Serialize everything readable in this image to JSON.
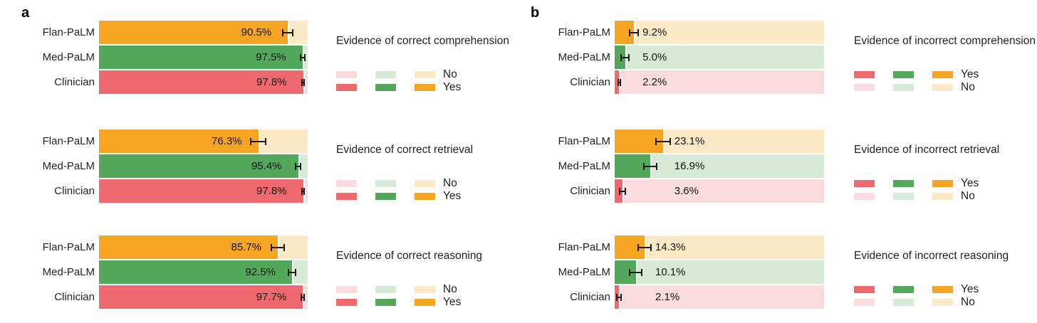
{
  "figure": {
    "panel_letters": {
      "a": "a",
      "b": "b"
    },
    "legend_labels": {
      "yes": "Yes",
      "no": "No"
    }
  },
  "colors": {
    "flan_palm": {
      "solid": "#F6A523",
      "light": "#FBE9C6"
    },
    "med_palm": {
      "solid": "#53A85C",
      "light": "#D7EAD7"
    },
    "clinician": {
      "solid": "#EE6A6F",
      "light": "#FADBDE"
    },
    "error_bar": "#1a1a1a",
    "text": "#231f20"
  },
  "swatch_order": [
    "clinician",
    "med_palm",
    "flan_palm"
  ],
  "series_keys": [
    "flan_palm",
    "med_palm",
    "clinician"
  ],
  "chart_data": [
    {
      "type": "bar",
      "orientation": "horizontal",
      "panel": "a",
      "title": "Evidence of correct comprehension",
      "categories": [
        "Flan-PaLM",
        "Med-PaLM",
        "Clinician"
      ],
      "values": [
        90.5,
        97.5,
        97.8
      ],
      "errors": [
        2.7,
        1.4,
        1.0
      ],
      "value_labels": [
        "90.5%",
        "97.5%",
        "97.8%"
      ],
      "xlim": [
        0,
        100
      ],
      "value_label_placement": "inside-end",
      "legend_position": "right",
      "legend_rows": [
        {
          "label": "No",
          "variant": "light"
        },
        {
          "label": "Yes",
          "variant": "solid"
        }
      ]
    },
    {
      "type": "bar",
      "orientation": "horizontal",
      "panel": "a",
      "title": "Evidence of correct retrieval",
      "categories": [
        "Flan-PaLM",
        "Med-PaLM",
        "Clinician"
      ],
      "values": [
        76.3,
        95.4,
        97.8
      ],
      "errors": [
        3.8,
        1.7,
        1.0
      ],
      "value_labels": [
        "76.3%",
        "95.4%",
        "97.8%"
      ],
      "xlim": [
        0,
        100
      ],
      "value_label_placement": "inside-end",
      "legend_position": "right",
      "legend_rows": [
        {
          "label": "No",
          "variant": "light"
        },
        {
          "label": "Yes",
          "variant": "solid"
        }
      ]
    },
    {
      "type": "bar",
      "orientation": "horizontal",
      "panel": "a",
      "title": "Evidence of correct reasoning",
      "categories": [
        "Flan-PaLM",
        "Med-PaLM",
        "Clinician"
      ],
      "values": [
        85.7,
        92.5,
        97.7
      ],
      "errors": [
        3.4,
        2.0,
        1.0
      ],
      "value_labels": [
        "85.7%",
        "92.5%",
        "97.7%"
      ],
      "xlim": [
        0,
        100
      ],
      "value_label_placement": "inside-end",
      "legend_position": "right",
      "legend_rows": [
        {
          "label": "No",
          "variant": "light"
        },
        {
          "label": "Yes",
          "variant": "solid"
        }
      ]
    },
    {
      "type": "bar",
      "orientation": "horizontal",
      "panel": "b",
      "title": "Evidence of incorrect comprehension",
      "categories": [
        "Flan-PaLM",
        "Med-PaLM",
        "Clinician"
      ],
      "values": [
        9.2,
        5.0,
        2.2
      ],
      "errors": [
        2.4,
        2.2,
        1.0
      ],
      "value_labels": [
        "9.2%",
        "5.0%",
        "2.2%"
      ],
      "xlim": [
        0,
        100
      ],
      "value_label_placement": "outside-end",
      "legend_position": "right",
      "legend_rows": [
        {
          "label": "Yes",
          "variant": "solid"
        },
        {
          "label": "No",
          "variant": "light"
        }
      ]
    },
    {
      "type": "bar",
      "orientation": "horizontal",
      "panel": "b",
      "title": "Evidence of incorrect retrieval",
      "categories": [
        "Flan-PaLM",
        "Med-PaLM",
        "Clinician"
      ],
      "values": [
        23.1,
        16.9,
        3.6
      ],
      "errors": [
        3.7,
        3.4,
        1.7
      ],
      "value_labels": [
        "23.1%",
        "16.9%",
        "3.6%"
      ],
      "xlim": [
        0,
        100
      ],
      "value_label_placement": "outside-end",
      "legend_position": "right",
      "legend_rows": [
        {
          "label": "Yes",
          "variant": "solid"
        },
        {
          "label": "No",
          "variant": "light"
        }
      ]
    },
    {
      "type": "bar",
      "orientation": "horizontal",
      "panel": "b",
      "title": "Evidence of incorrect reasoning",
      "categories": [
        "Flan-PaLM",
        "Med-PaLM",
        "Clinician"
      ],
      "values": [
        14.3,
        10.1,
        2.1
      ],
      "errors": [
        3.4,
        3.2,
        1.4
      ],
      "value_labels": [
        "14.3%",
        "10.1%",
        "2.1%"
      ],
      "xlim": [
        0,
        100
      ],
      "value_label_placement": "outside-end",
      "legend_position": "right",
      "legend_rows": [
        {
          "label": "Yes",
          "variant": "solid"
        },
        {
          "label": "No",
          "variant": "light"
        }
      ]
    }
  ]
}
